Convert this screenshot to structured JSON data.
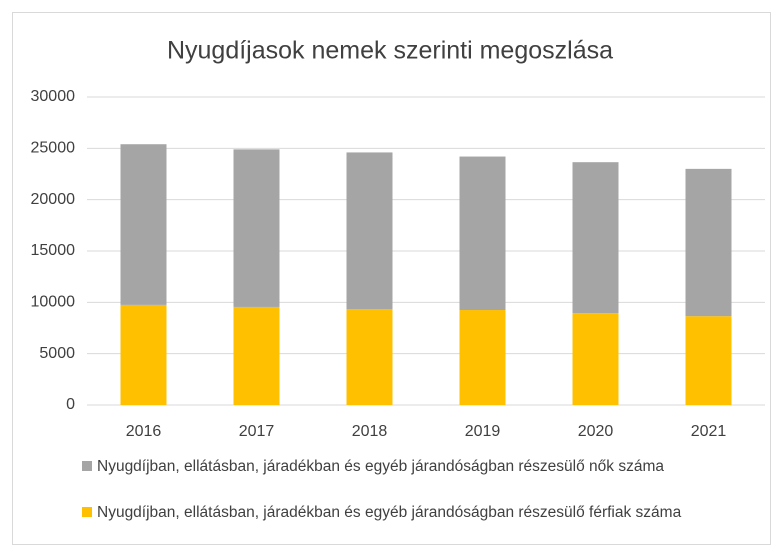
{
  "chart_data": {
    "type": "stacked_bar",
    "title": "Nyugdíjasok nemek szerinti megoszlása",
    "categories": [
      "2016",
      "2017",
      "2018",
      "2019",
      "2020",
      "2021"
    ],
    "series": [
      {
        "name": "Nyugdíjban, ellátásban, járadékban és egyéb járandóságban részesülő nők száma",
        "color": "#a5a5a5",
        "values": [
          15650,
          15350,
          15250,
          14950,
          14700,
          14350
        ]
      },
      {
        "name": "Nyugdíjban, ellátásban, járadékban és egyéb járandóságban részesülő férfiak száma",
        "color": "#ffc000",
        "values": [
          9750,
          9550,
          9350,
          9250,
          8950,
          8650
        ]
      }
    ],
    "ylim": [
      0,
      30000
    ],
    "yticks": [
      0,
      5000,
      10000,
      15000,
      20000,
      25000,
      30000
    ],
    "grid": true
  }
}
